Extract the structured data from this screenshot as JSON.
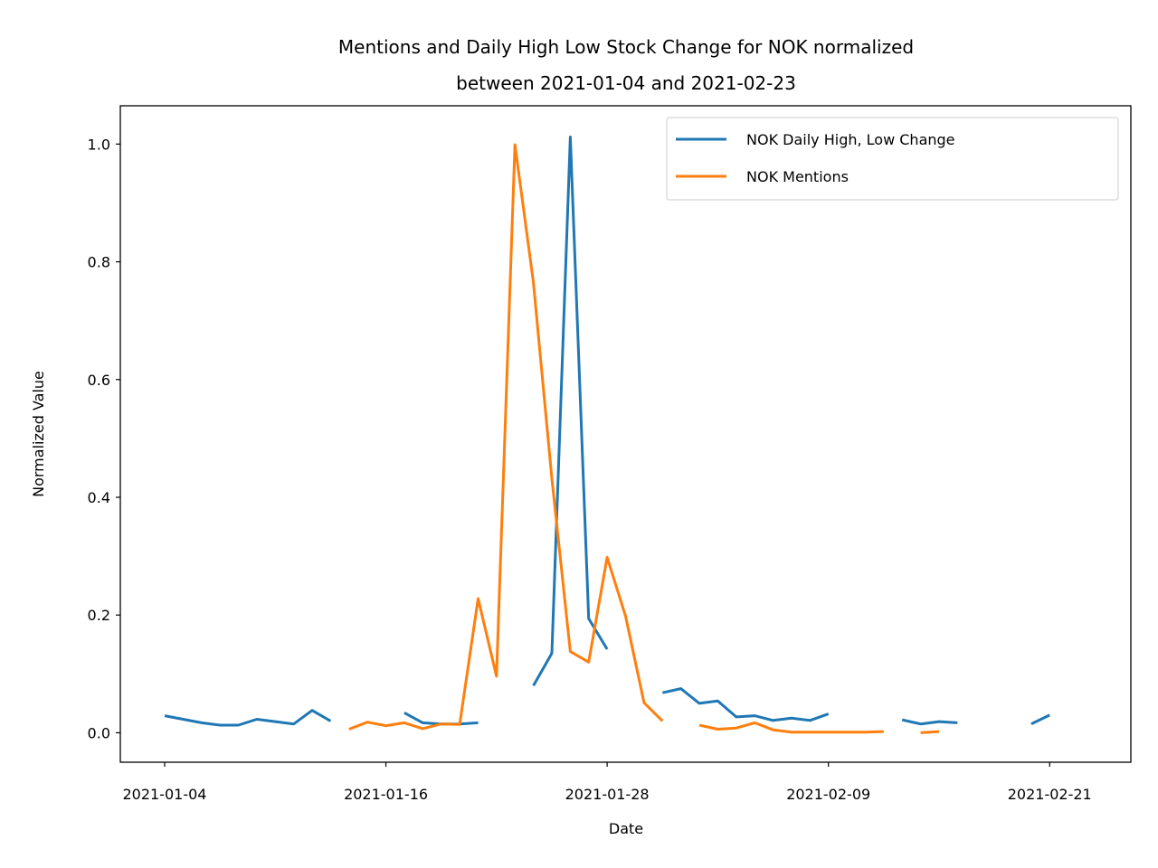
{
  "chart_data": {
    "type": "line",
    "title_lines": [
      "Mentions and Daily High Low Stock Change for NOK normalized",
      "between 2021-01-04 and 2021-02-23"
    ],
    "xlabel": "Date",
    "ylabel": "Normalized Value",
    "x_start": "2021-01-04",
    "x_end": "2021-02-23",
    "x_ticks": [
      "2021-01-04",
      "2021-01-16",
      "2021-01-28",
      "2021-02-09",
      "2021-02-21"
    ],
    "y_ticks": [
      "0.0",
      "0.2",
      "0.4",
      "0.6",
      "0.8",
      "1.0"
    ],
    "ylim": [
      -0.05,
      1.065
    ],
    "grid": false,
    "legend_position": "top-right",
    "series": [
      {
        "name": "NOK Daily High, Low Change",
        "color": "#1f77b4",
        "points": [
          [
            "2021-01-04",
            0.029
          ],
          [
            "2021-01-05",
            0.023
          ],
          [
            "2021-01-06",
            0.017
          ],
          [
            "2021-01-07",
            0.013
          ],
          [
            "2021-01-08",
            0.013
          ],
          [
            "2021-01-09",
            0.023
          ],
          [
            "2021-01-10",
            0.019
          ],
          [
            "2021-01-11",
            0.015
          ],
          [
            "2021-01-12",
            0.038
          ],
          [
            "2021-01-13",
            0.02
          ],
          [
            "2021-01-14",
            null
          ],
          [
            "2021-01-15",
            null
          ],
          [
            "2021-01-16",
            null
          ],
          [
            "2021-01-17",
            0.034
          ],
          [
            "2021-01-18",
            0.017
          ],
          [
            "2021-01-19",
            0.015
          ],
          [
            "2021-01-20",
            0.015
          ],
          [
            "2021-01-21",
            0.017
          ],
          [
            "2021-01-22",
            null
          ],
          [
            "2021-01-23",
            null
          ],
          [
            "2021-01-24",
            0.08
          ],
          [
            "2021-01-25",
            0.135
          ],
          [
            "2021-01-26",
            1.012
          ],
          [
            "2021-01-27",
            0.194
          ],
          [
            "2021-01-28",
            0.142
          ],
          [
            "2021-01-29",
            null
          ],
          [
            "2021-01-30",
            null
          ],
          [
            "2021-01-31",
            0.068
          ],
          [
            "2021-02-01",
            0.075
          ],
          [
            "2021-02-02",
            0.05
          ],
          [
            "2021-02-03",
            0.054
          ],
          [
            "2021-02-04",
            0.027
          ],
          [
            "2021-02-05",
            0.029
          ],
          [
            "2021-02-06",
            0.021
          ],
          [
            "2021-02-07",
            0.025
          ],
          [
            "2021-02-08",
            0.021
          ],
          [
            "2021-02-09",
            0.032
          ],
          [
            "2021-02-10",
            null
          ],
          [
            "2021-02-11",
            null
          ],
          [
            "2021-02-12",
            null
          ],
          [
            "2021-02-13",
            0.022
          ],
          [
            "2021-02-14",
            0.015
          ],
          [
            "2021-02-15",
            0.019
          ],
          [
            "2021-02-16",
            0.017
          ],
          [
            "2021-02-17",
            null
          ],
          [
            "2021-02-18",
            null
          ],
          [
            "2021-02-19",
            null
          ],
          [
            "2021-02-20",
            0.015
          ],
          [
            "2021-02-21",
            0.03
          ]
        ]
      },
      {
        "name": "NOK Mentions",
        "color": "#ff7f0e",
        "points": [
          [
            "2021-01-14",
            0.006
          ],
          [
            "2021-01-15",
            0.018
          ],
          [
            "2021-01-16",
            0.012
          ],
          [
            "2021-01-17",
            0.017
          ],
          [
            "2021-01-18",
            0.007
          ],
          [
            "2021-01-19",
            0.015
          ],
          [
            "2021-01-20",
            0.014
          ],
          [
            "2021-01-21",
            0.228
          ],
          [
            "2021-01-22",
            0.096
          ],
          [
            "2021-01-23",
            0.999
          ],
          [
            "2021-01-24",
            0.765
          ],
          [
            "2021-01-25",
            0.432
          ],
          [
            "2021-01-26",
            0.138
          ],
          [
            "2021-01-27",
            0.12
          ],
          [
            "2021-01-28",
            0.298
          ],
          [
            "2021-01-29",
            0.198
          ],
          [
            "2021-01-30",
            0.051
          ],
          [
            "2021-01-31",
            0.02
          ],
          [
            "2021-02-01",
            null
          ],
          [
            "2021-02-02",
            0.013
          ],
          [
            "2021-02-03",
            0.006
          ],
          [
            "2021-02-04",
            0.008
          ],
          [
            "2021-02-05",
            0.017
          ],
          [
            "2021-02-06",
            0.005
          ],
          [
            "2021-02-07",
            0.001
          ],
          [
            "2021-02-08",
            0.001
          ],
          [
            "2021-02-09",
            0.001
          ],
          [
            "2021-02-10",
            0.001
          ],
          [
            "2021-02-11",
            0.001
          ],
          [
            "2021-02-12",
            0.002
          ],
          [
            "2021-02-13",
            null
          ],
          [
            "2021-02-14",
            0.0
          ],
          [
            "2021-02-15",
            0.002
          ]
        ]
      }
    ]
  }
}
